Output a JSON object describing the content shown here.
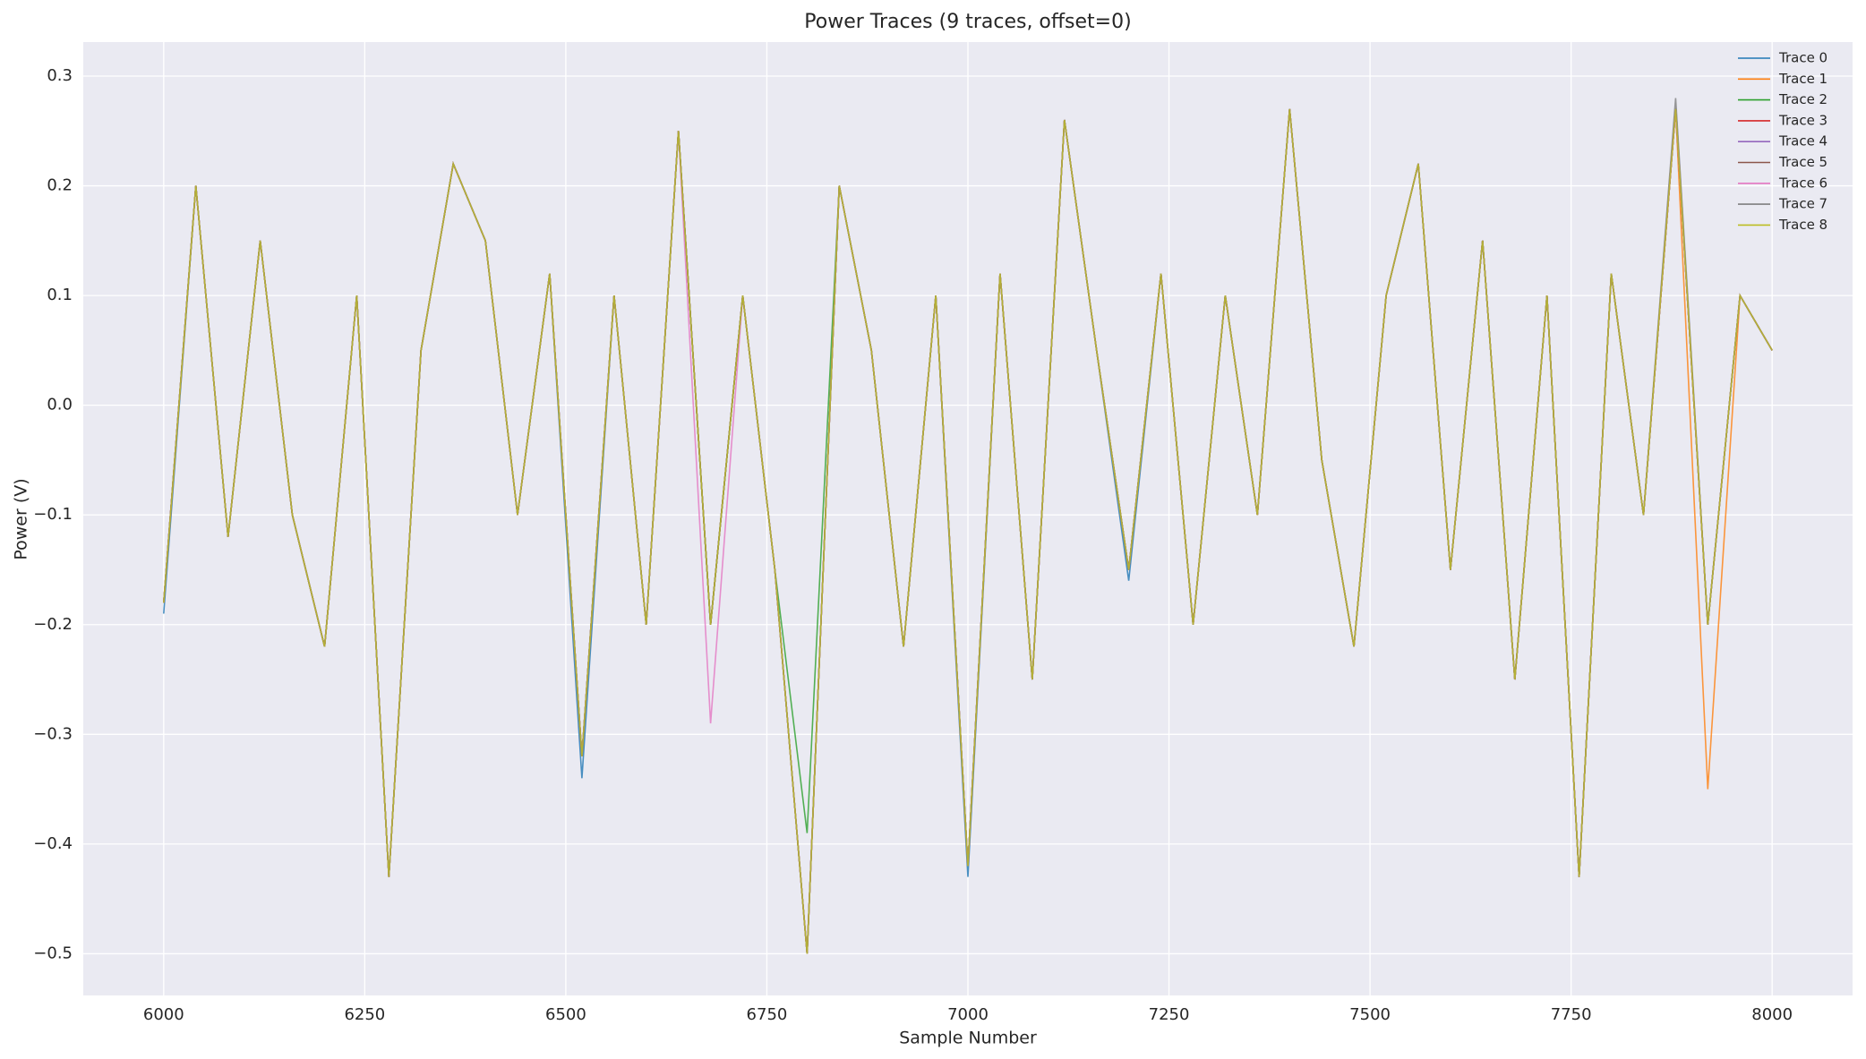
{
  "chart_data": {
    "type": "line",
    "title": "Power Traces (9 traces, offset=0)",
    "x_label": "Sample Number",
    "y_label": "Power (V)",
    "x": [
      6000,
      6040,
      6080,
      6120,
      6160,
      6200,
      6240,
      6280,
      6320,
      6360,
      6400,
      6440,
      6480,
      6520,
      6560,
      6600,
      6640,
      6680,
      6720,
      6760,
      6800,
      6840,
      6880,
      6920,
      6960,
      7000,
      7040,
      7080,
      7120,
      7160,
      7200,
      7240,
      7280,
      7320,
      7360,
      7400,
      7440,
      7480,
      7520,
      7560,
      7600,
      7640,
      7680,
      7720,
      7760,
      7800,
      7840,
      7880,
      7920,
      7960,
      8000
    ],
    "series": [
      {
        "name": "Trace 0",
        "color": "#1f77b4",
        "values": [
          -0.19,
          0.2,
          -0.12,
          0.15,
          -0.1,
          -0.22,
          0.1,
          -0.43,
          0.05,
          0.22,
          0.15,
          -0.1,
          0.12,
          -0.34,
          0.1,
          -0.2,
          0.25,
          -0.2,
          0.1,
          -0.15,
          -0.5,
          0.2,
          0.05,
          -0.22,
          0.1,
          -0.43,
          0.12,
          -0.25,
          0.26,
          0.05,
          -0.16,
          0.12,
          -0.2,
          0.1,
          -0.1,
          0.27,
          -0.05,
          -0.22,
          0.1,
          0.22,
          -0.15,
          0.15,
          -0.25,
          0.1,
          -0.43,
          0.12,
          -0.1,
          0.27,
          -0.2,
          0.1,
          0.05
        ]
      },
      {
        "name": "Trace 1",
        "color": "#ff7f0e",
        "values": [
          -0.18,
          0.2,
          -0.12,
          0.15,
          -0.1,
          -0.22,
          0.1,
          -0.43,
          0.05,
          0.22,
          0.15,
          -0.1,
          0.12,
          -0.32,
          0.1,
          -0.2,
          0.25,
          -0.2,
          0.1,
          -0.15,
          -0.5,
          0.2,
          0.05,
          -0.22,
          0.1,
          -0.42,
          0.12,
          -0.25,
          0.26,
          0.05,
          -0.15,
          0.12,
          -0.2,
          0.1,
          -0.1,
          0.27,
          -0.05,
          -0.22,
          0.1,
          0.22,
          -0.15,
          0.15,
          -0.25,
          0.1,
          -0.43,
          0.12,
          -0.1,
          0.27,
          -0.35,
          0.1,
          0.05
        ]
      },
      {
        "name": "Trace 2",
        "color": "#2ca02c",
        "values": [
          -0.18,
          0.2,
          -0.12,
          0.15,
          -0.1,
          -0.22,
          0.1,
          -0.43,
          0.05,
          0.22,
          0.15,
          -0.1,
          0.12,
          -0.32,
          0.1,
          -0.2,
          0.25,
          -0.2,
          0.1,
          -0.15,
          -0.39,
          0.2,
          0.05,
          -0.22,
          0.1,
          -0.42,
          0.12,
          -0.25,
          0.26,
          0.05,
          -0.15,
          0.12,
          -0.2,
          0.1,
          -0.1,
          0.27,
          -0.05,
          -0.22,
          0.1,
          0.22,
          -0.15,
          0.15,
          -0.25,
          0.1,
          -0.43,
          0.12,
          -0.1,
          0.27,
          -0.2,
          0.1,
          0.05
        ]
      },
      {
        "name": "Trace 3",
        "color": "#d62728",
        "values": [
          -0.18,
          0.2,
          -0.12,
          0.15,
          -0.1,
          -0.22,
          0.1,
          -0.43,
          0.05,
          0.22,
          0.15,
          -0.1,
          0.12,
          -0.32,
          0.1,
          -0.2,
          0.25,
          -0.2,
          0.1,
          -0.15,
          -0.5,
          0.2,
          0.05,
          -0.22,
          0.1,
          -0.42,
          0.12,
          -0.25,
          0.26,
          0.05,
          -0.15,
          0.12,
          -0.2,
          0.1,
          -0.1,
          0.27,
          -0.05,
          -0.22,
          0.1,
          0.22,
          -0.15,
          0.15,
          -0.25,
          0.1,
          -0.43,
          0.12,
          -0.1,
          0.27,
          -0.2,
          0.1,
          0.05
        ]
      },
      {
        "name": "Trace 4",
        "color": "#9467bd",
        "values": [
          -0.18,
          0.2,
          -0.12,
          0.15,
          -0.1,
          -0.22,
          0.1,
          -0.43,
          0.05,
          0.22,
          0.15,
          -0.1,
          0.12,
          -0.32,
          0.1,
          -0.2,
          0.25,
          -0.2,
          0.1,
          -0.15,
          -0.5,
          0.2,
          0.05,
          -0.22,
          0.1,
          -0.42,
          0.12,
          -0.25,
          0.26,
          0.05,
          -0.15,
          0.12,
          -0.2,
          0.1,
          -0.1,
          0.27,
          -0.05,
          -0.22,
          0.1,
          0.22,
          -0.15,
          0.15,
          -0.25,
          0.1,
          -0.43,
          0.12,
          -0.1,
          0.27,
          -0.2,
          0.1,
          0.05
        ]
      },
      {
        "name": "Trace 5",
        "color": "#8c564b",
        "values": [
          -0.18,
          0.2,
          -0.12,
          0.15,
          -0.1,
          -0.22,
          0.1,
          -0.43,
          0.05,
          0.22,
          0.15,
          -0.1,
          0.12,
          -0.32,
          0.1,
          -0.2,
          0.25,
          -0.2,
          0.1,
          -0.15,
          -0.5,
          0.2,
          0.05,
          -0.22,
          0.1,
          -0.42,
          0.12,
          -0.25,
          0.26,
          0.05,
          -0.15,
          0.12,
          -0.2,
          0.1,
          -0.1,
          0.27,
          -0.05,
          -0.22,
          0.1,
          0.22,
          -0.15,
          0.15,
          -0.25,
          0.1,
          -0.43,
          0.12,
          -0.1,
          0.27,
          -0.2,
          0.1,
          0.05
        ]
      },
      {
        "name": "Trace 6",
        "color": "#e377c2",
        "values": [
          -0.18,
          0.2,
          -0.12,
          0.15,
          -0.1,
          -0.22,
          0.1,
          -0.43,
          0.05,
          0.22,
          0.15,
          -0.1,
          0.12,
          -0.32,
          0.1,
          -0.2,
          0.25,
          -0.29,
          0.1,
          -0.15,
          -0.5,
          0.2,
          0.05,
          -0.22,
          0.1,
          -0.42,
          0.12,
          -0.25,
          0.26,
          0.05,
          -0.15,
          0.12,
          -0.2,
          0.1,
          -0.1,
          0.27,
          -0.05,
          -0.22,
          0.1,
          0.22,
          -0.15,
          0.15,
          -0.25,
          0.1,
          -0.43,
          0.12,
          -0.1,
          0.27,
          -0.2,
          0.1,
          0.05
        ]
      },
      {
        "name": "Trace 7",
        "color": "#7f7f7f",
        "values": [
          -0.18,
          0.2,
          -0.12,
          0.15,
          -0.1,
          -0.22,
          0.1,
          -0.43,
          0.05,
          0.22,
          0.15,
          -0.1,
          0.12,
          -0.32,
          0.1,
          -0.2,
          0.25,
          -0.2,
          0.1,
          -0.15,
          -0.5,
          0.2,
          0.05,
          -0.22,
          0.1,
          -0.42,
          0.12,
          -0.25,
          0.26,
          0.05,
          -0.15,
          0.12,
          -0.2,
          0.1,
          -0.1,
          0.27,
          -0.05,
          -0.22,
          0.1,
          0.22,
          -0.15,
          0.15,
          -0.25,
          0.1,
          -0.43,
          0.12,
          -0.1,
          0.28,
          -0.2,
          0.1,
          0.05
        ]
      },
      {
        "name": "Trace 8",
        "color": "#bcbd22",
        "values": [
          -0.18,
          0.2,
          -0.12,
          0.15,
          -0.1,
          -0.22,
          0.1,
          -0.43,
          0.05,
          0.22,
          0.15,
          -0.1,
          0.12,
          -0.32,
          0.1,
          -0.2,
          0.25,
          -0.2,
          0.1,
          -0.15,
          -0.5,
          0.2,
          0.05,
          -0.22,
          0.1,
          -0.42,
          0.12,
          -0.25,
          0.26,
          0.05,
          -0.15,
          0.12,
          -0.2,
          0.1,
          -0.1,
          0.27,
          -0.05,
          -0.22,
          0.1,
          0.22,
          -0.15,
          0.15,
          -0.25,
          0.1,
          -0.43,
          0.12,
          -0.1,
          0.27,
          -0.2,
          0.1,
          0.05
        ]
      }
    ],
    "xlim": [
      5900,
      8100
    ],
    "xticks": [
      6000,
      6250,
      6500,
      6750,
      7000,
      7250,
      7500,
      7750,
      8000
    ],
    "ylim": [
      -0.538,
      0.331
    ],
    "yticks": [
      {
        "value": -0.5,
        "label": "−0.5"
      },
      {
        "value": -0.4,
        "label": "−0.4"
      },
      {
        "value": -0.3,
        "label": "−0.3"
      },
      {
        "value": -0.2,
        "label": "−0.2"
      },
      {
        "value": -0.1,
        "label": "−0.1"
      },
      {
        "value": 0,
        "label": "0.0"
      },
      0.1,
      0.2,
      0.3
    ],
    "grid": true,
    "legend": "upper right"
  }
}
